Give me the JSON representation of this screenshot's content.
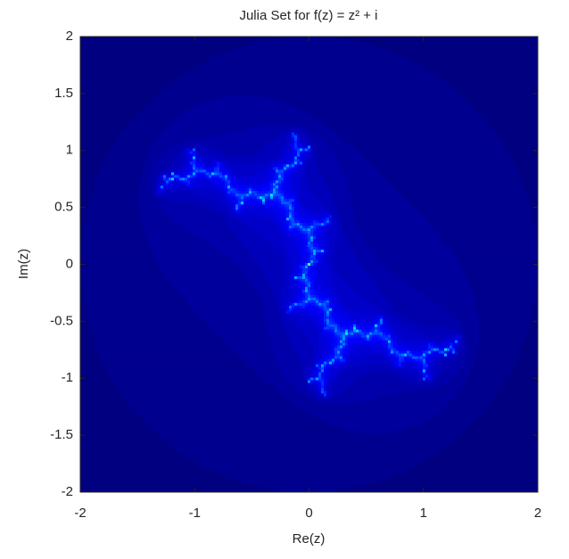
{
  "chart_data": {
    "type": "image",
    "title": "Julia Set for f(z) = z² + i",
    "xlabel": "Re(z)",
    "ylabel": "Im(z)",
    "xlim": [
      -2,
      2
    ],
    "ylim": [
      -2,
      2
    ],
    "xticks": [
      -2,
      -1,
      0,
      1,
      2
    ],
    "yticks": [
      -2,
      -1.5,
      -1,
      -0.5,
      0,
      0.5,
      1,
      1.5,
      2
    ]
  }
}
